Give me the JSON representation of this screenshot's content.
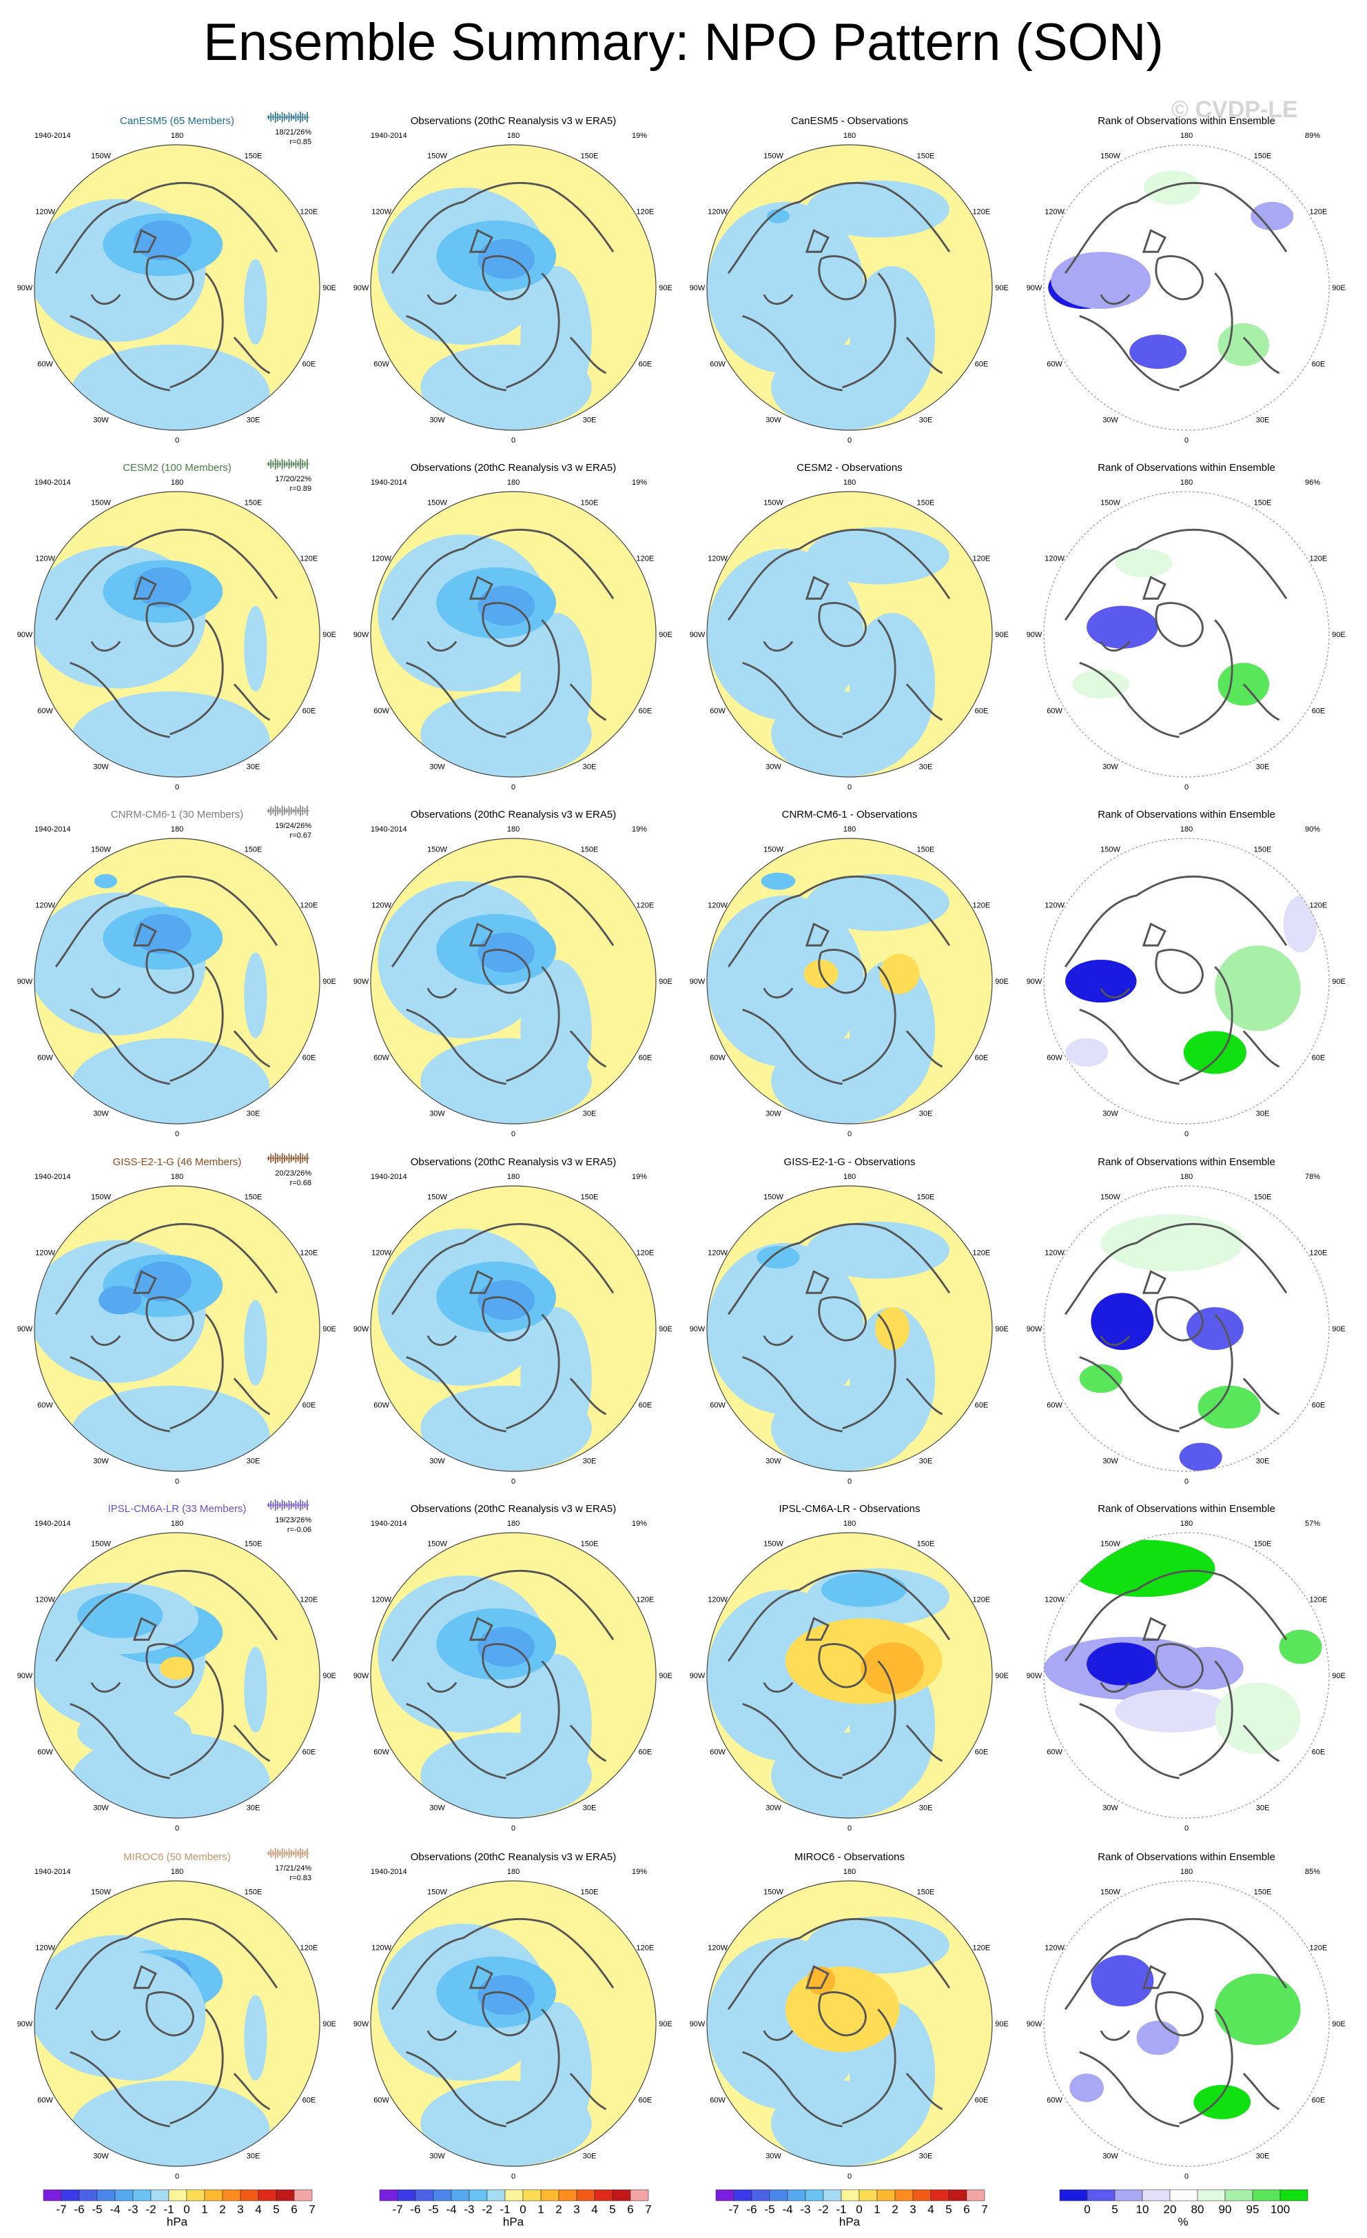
{
  "title": "Ensemble Summary: NPO Pattern (SON)",
  "watermark": "© CVDP-LE",
  "lon_labels": [
    "180",
    "150E",
    "120E",
    "90E",
    "60E",
    "30E",
    "0",
    "30W",
    "60W",
    "90W",
    "120W",
    "150W"
  ],
  "rows": [
    {
      "model": "CanESM5 (65 Members)",
      "model_color": "#1f6e8c",
      "period": "1940-2014",
      "stats": [
        "18/21/26%",
        "r=0.85"
      ],
      "diff_title": "CanESM5 - Observations",
      "rank_pct": "89%",
      "bar_color": "#1f6e8c"
    },
    {
      "model": "CESM2 (100 Members)",
      "model_color": "#4a7f4a",
      "period": "1940-2014",
      "stats": [
        "17/20/22%",
        "r=0.89"
      ],
      "diff_title": "CESM2 - Observations",
      "rank_pct": "96%",
      "bar_color": "#4a7f4a"
    },
    {
      "model": "CNRM-CM6-1 (30 Members)",
      "model_color": "#7d7d7d",
      "period": "1940-2014",
      "stats": [
        "19/24/26%",
        "r=0.67"
      ],
      "diff_title": "CNRM-CM6-1 - Observations",
      "rank_pct": "90%",
      "bar_color": "#7d7d7d"
    },
    {
      "model": "GISS-E2-1-G (46 Members)",
      "model_color": "#8b4a22",
      "period": "1940-2014",
      "stats": [
        "20/23/26%",
        "r=0.68"
      ],
      "diff_title": "GISS-E2-1-G - Observations",
      "rank_pct": "78%",
      "bar_color": "#8b4a22"
    },
    {
      "model": "IPSL-CM6A-LR (33 Members)",
      "model_color": "#6a4fc9",
      "period": "1940-2014",
      "stats": [
        "19/23/26%",
        "r=-0.06"
      ],
      "diff_title": "IPSL-CM6A-LR - Observations",
      "rank_pct": "57%",
      "bar_color": "#6a4fc9"
    },
    {
      "model": "MIROC6 (50 Members)",
      "model_color": "#c8956a",
      "period": "1940-2014",
      "stats": [
        "17/21/24%",
        "r=0.83"
      ],
      "diff_title": "MIROC6 - Observations",
      "rank_pct": "85%",
      "bar_color": "#c8956a"
    }
  ],
  "obs": {
    "title": "Observations (20thC Reanalysis v3 w ERA5)",
    "period": "1940-2014",
    "pct": "19%"
  },
  "rank_title": "Rank of Observations within Ensemble",
  "colorbar_hpa": {
    "ticks": [
      "-7",
      "-6",
      "-5",
      "-4",
      "-3",
      "-2",
      "-1",
      "0",
      "1",
      "2",
      "3",
      "4",
      "5",
      "6",
      "7"
    ],
    "unit": "hPa",
    "colors": [
      "#7a1fe0",
      "#3a3ae8",
      "#4a62e8",
      "#4a86ec",
      "#56a8f0",
      "#68c4f4",
      "#a8dcf4",
      "#fdf59a",
      "#ffdc55",
      "#ffb830",
      "#ff8c1e",
      "#f25a18",
      "#e02a1a",
      "#c01818",
      "#f4a6a6"
    ]
  },
  "colorbar_rank": {
    "ticks": [
      "0",
      "5",
      "10",
      "20",
      "80",
      "90",
      "95",
      "100"
    ],
    "unit": "%",
    "colors": [
      "#1a1ae0",
      "#5a5aee",
      "#a8a8f4",
      "#e0e0fa",
      "#ffffff",
      "#e0fae0",
      "#a8f0a8",
      "#5ae65a",
      "#10e010"
    ]
  }
}
